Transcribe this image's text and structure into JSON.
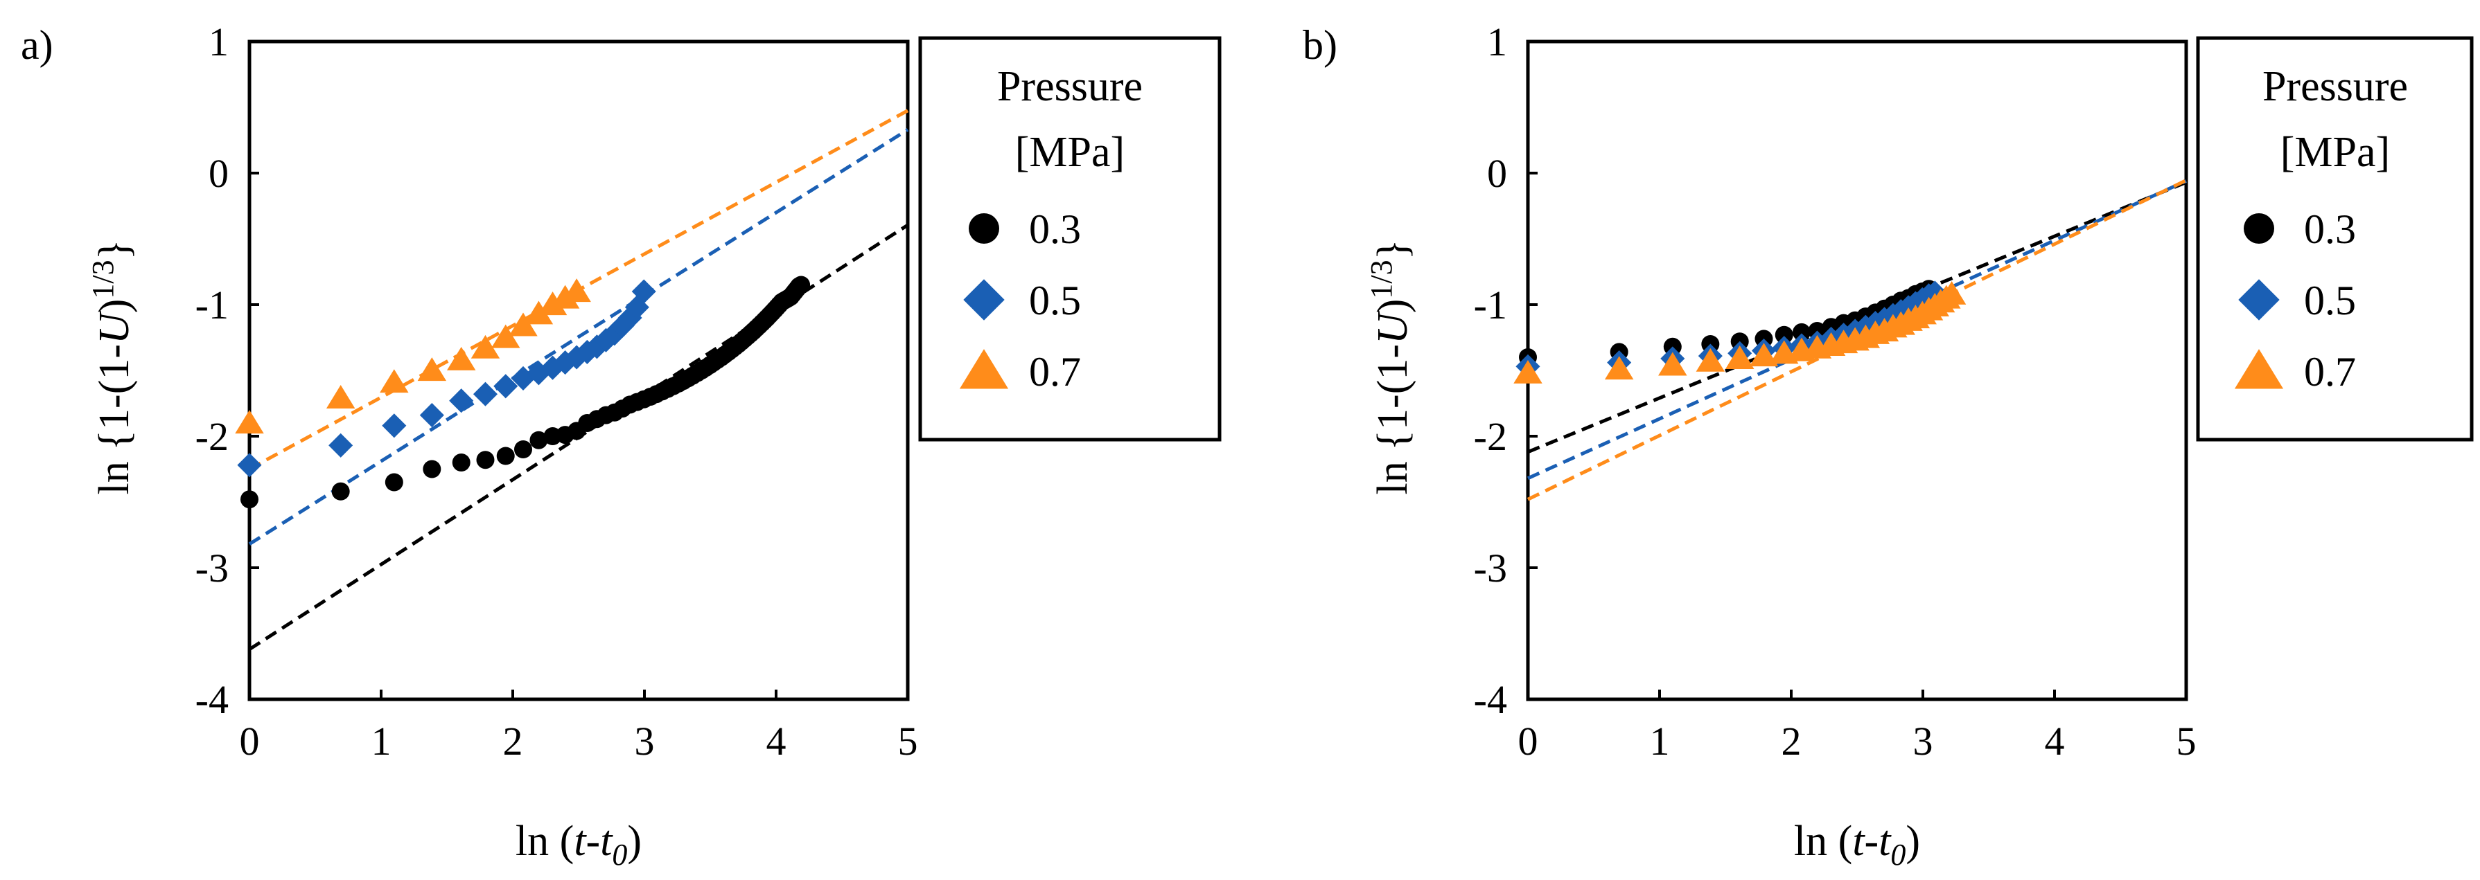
{
  "chart_data": [
    {
      "type": "scatter",
      "panel_label": "a)",
      "xlabel": {
        "prefix": "ln",
        "var": "t",
        "sub": "0"
      },
      "ylabel": {
        "prefix": "ln",
        "left": "{1-(1-",
        "var": "U",
        "right": ")",
        "sup": "1/3",
        "close": "}"
      },
      "xlim": [
        0,
        5
      ],
      "ylim": [
        -4,
        1
      ],
      "x_ticks": [
        "0",
        "1",
        "2",
        "3",
        "4",
        "5"
      ],
      "y_ticks": [
        "-4",
        "-3",
        "-2",
        "-1",
        "0",
        "1"
      ],
      "grid": false,
      "legend": {
        "title_line1": "Pressure",
        "title_line2": "[MPa]",
        "position": "right"
      },
      "series": [
        {
          "name": "0.3",
          "color": "#000000",
          "marker": "circle",
          "fit": {
            "intercept": -3.62,
            "slope": 0.645
          },
          "points": [
            [
              0,
              -2.48
            ],
            [
              0.693,
              -2.42
            ],
            [
              1.099,
              -2.35
            ],
            [
              1.386,
              -2.25
            ],
            [
              1.609,
              -2.2
            ],
            [
              1.792,
              -2.18
            ],
            [
              1.946,
              -2.15
            ],
            [
              2.079,
              -2.1
            ],
            [
              2.197,
              -2.03
            ],
            [
              2.303,
              -2.0
            ],
            [
              2.398,
              -1.99
            ],
            [
              2.485,
              -1.96
            ],
            [
              2.565,
              -1.9
            ],
            [
              2.639,
              -1.87
            ],
            [
              2.708,
              -1.84
            ],
            [
              2.773,
              -1.82
            ],
            [
              2.833,
              -1.79
            ],
            [
              2.89,
              -1.76
            ],
            [
              2.944,
              -1.74
            ],
            [
              2.996,
              -1.72
            ],
            [
              3.045,
              -1.7
            ],
            [
              3.091,
              -1.68
            ],
            [
              3.135,
              -1.66
            ],
            [
              3.178,
              -1.64
            ],
            [
              3.219,
              -1.62
            ],
            [
              3.258,
              -1.6
            ],
            [
              3.296,
              -1.58
            ],
            [
              3.332,
              -1.56
            ],
            [
              3.367,
              -1.54
            ],
            [
              3.401,
              -1.52
            ],
            [
              3.434,
              -1.5
            ],
            [
              3.466,
              -1.48
            ],
            [
              3.497,
              -1.46
            ],
            [
              3.526,
              -1.44
            ],
            [
              3.555,
              -1.42
            ],
            [
              3.584,
              -1.4
            ],
            [
              3.611,
              -1.38
            ],
            [
              3.638,
              -1.36
            ],
            [
              3.664,
              -1.34
            ],
            [
              3.689,
              -1.32
            ],
            [
              3.714,
              -1.3
            ],
            [
              3.738,
              -1.28
            ],
            [
              3.761,
              -1.26
            ],
            [
              3.784,
              -1.24
            ],
            [
              3.807,
              -1.22
            ],
            [
              3.829,
              -1.2
            ],
            [
              3.85,
              -1.18
            ],
            [
              3.871,
              -1.16
            ],
            [
              3.892,
              -1.14
            ],
            [
              3.912,
              -1.12
            ],
            [
              3.932,
              -1.1
            ],
            [
              3.951,
              -1.08
            ],
            [
              3.97,
              -1.06
            ],
            [
              3.989,
              -1.04
            ],
            [
              4.007,
              -1.02
            ],
            [
              4.025,
              -1.0
            ],
            [
              4.043,
              -0.98
            ],
            [
              4.06,
              -0.97
            ],
            [
              4.078,
              -0.96
            ],
            [
              4.094,
              -0.95
            ],
            [
              4.111,
              -0.94
            ],
            [
              4.127,
              -0.92
            ],
            [
              4.143,
              -0.9
            ],
            [
              4.159,
              -0.88
            ],
            [
              4.174,
              -0.86
            ],
            [
              4.19,
              -0.85
            ]
          ]
        },
        {
          "name": "0.5",
          "color": "#1a5fb4",
          "marker": "diamond",
          "fit": {
            "intercept": -2.82,
            "slope": 0.63
          },
          "points": [
            [
              0,
              -2.22
            ],
            [
              0.693,
              -2.07
            ],
            [
              1.099,
              -1.92
            ],
            [
              1.386,
              -1.84
            ],
            [
              1.609,
              -1.73
            ],
            [
              1.792,
              -1.68
            ],
            [
              1.946,
              -1.62
            ],
            [
              2.079,
              -1.56
            ],
            [
              2.197,
              -1.52
            ],
            [
              2.303,
              -1.48
            ],
            [
              2.398,
              -1.44
            ],
            [
              2.485,
              -1.4
            ],
            [
              2.565,
              -1.36
            ],
            [
              2.639,
              -1.32
            ],
            [
              2.708,
              -1.27
            ],
            [
              2.773,
              -1.22
            ],
            [
              2.833,
              -1.16
            ],
            [
              2.89,
              -1.1
            ],
            [
              2.944,
              -1.02
            ],
            [
              2.996,
              -0.9
            ]
          ]
        },
        {
          "name": "0.7",
          "color": "#ff8c1a",
          "marker": "triangle",
          "fit": {
            "intercept": -2.25,
            "slope": 0.545
          },
          "points": [
            [
              0,
              -1.9
            ],
            [
              0.693,
              -1.71
            ],
            [
              1.099,
              -1.59
            ],
            [
              1.386,
              -1.5
            ],
            [
              1.609,
              -1.42
            ],
            [
              1.792,
              -1.33
            ],
            [
              1.946,
              -1.25
            ],
            [
              2.079,
              -1.16
            ],
            [
              2.197,
              -1.07
            ],
            [
              2.303,
              -1.0
            ],
            [
              2.398,
              -0.95
            ],
            [
              2.485,
              -0.9
            ]
          ]
        }
      ]
    },
    {
      "type": "scatter",
      "panel_label": "b)",
      "xlabel": {
        "prefix": "ln",
        "var": "t",
        "sub": "0"
      },
      "ylabel": {
        "prefix": "ln",
        "left": "{1-(1-",
        "var": "U",
        "right": ")",
        "sup": "1/3",
        "close": "}"
      },
      "xlim": [
        0,
        5
      ],
      "ylim": [
        -4,
        1
      ],
      "x_ticks": [
        "0",
        "1",
        "2",
        "3",
        "4",
        "5"
      ],
      "y_ticks": [
        "-4",
        "-3",
        "-2",
        "-1",
        "0",
        "1"
      ],
      "grid": false,
      "legend": {
        "title_line1": "Pressure",
        "title_line2": "[MPa]",
        "position": "right"
      },
      "series": [
        {
          "name": "0.3",
          "color": "#000000",
          "marker": "circle",
          "fit": {
            "intercept": -2.12,
            "slope": 0.41
          },
          "points": [
            [
              0,
              -1.4
            ],
            [
              0.693,
              -1.36
            ],
            [
              1.099,
              -1.32
            ],
            [
              1.386,
              -1.3
            ],
            [
              1.609,
              -1.28
            ],
            [
              1.792,
              -1.26
            ],
            [
              1.946,
              -1.23
            ],
            [
              2.079,
              -1.21
            ],
            [
              2.197,
              -1.2
            ],
            [
              2.303,
              -1.17
            ],
            [
              2.398,
              -1.14
            ],
            [
              2.485,
              -1.12
            ],
            [
              2.565,
              -1.09
            ],
            [
              2.639,
              -1.06
            ],
            [
              2.708,
              -1.03
            ],
            [
              2.773,
              -1.0
            ],
            [
              2.833,
              -0.97
            ],
            [
              2.89,
              -0.95
            ],
            [
              2.944,
              -0.92
            ],
            [
              2.996,
              -0.9
            ],
            [
              3.045,
              -0.88
            ]
          ]
        },
        {
          "name": "0.5",
          "color": "#1a5fb4",
          "marker": "diamond",
          "fit": {
            "intercept": -2.32,
            "slope": 0.452
          },
          "points": [
            [
              0,
              -1.47
            ],
            [
              0.693,
              -1.44
            ],
            [
              1.099,
              -1.41
            ],
            [
              1.386,
              -1.39
            ],
            [
              1.609,
              -1.37
            ],
            [
              1.792,
              -1.35
            ],
            [
              1.946,
              -1.33
            ],
            [
              2.079,
              -1.31
            ],
            [
              2.197,
              -1.29
            ],
            [
              2.303,
              -1.26
            ],
            [
              2.398,
              -1.23
            ],
            [
              2.485,
              -1.2
            ],
            [
              2.565,
              -1.17
            ],
            [
              2.639,
              -1.14
            ],
            [
              2.708,
              -1.11
            ],
            [
              2.773,
              -1.08
            ],
            [
              2.833,
              -1.05
            ],
            [
              2.89,
              -1.02
            ],
            [
              2.944,
              -0.99
            ],
            [
              2.996,
              -0.96
            ],
            [
              3.045,
              -0.93
            ],
            [
              3.091,
              -0.91
            ]
          ]
        },
        {
          "name": "0.7",
          "color": "#ff8c1a",
          "marker": "triangle",
          "fit": {
            "intercept": -2.48,
            "slope": 0.485
          },
          "points": [
            [
              0,
              -1.52
            ],
            [
              0.693,
              -1.49
            ],
            [
              1.099,
              -1.46
            ],
            [
              1.386,
              -1.43
            ],
            [
              1.609,
              -1.41
            ],
            [
              1.792,
              -1.39
            ],
            [
              1.946,
              -1.37
            ],
            [
              2.079,
              -1.35
            ],
            [
              2.197,
              -1.33
            ],
            [
              2.303,
              -1.31
            ],
            [
              2.398,
              -1.29
            ],
            [
              2.485,
              -1.27
            ],
            [
              2.565,
              -1.25
            ],
            [
              2.639,
              -1.22
            ],
            [
              2.708,
              -1.2
            ],
            [
              2.773,
              -1.17
            ],
            [
              2.833,
              -1.15
            ],
            [
              2.89,
              -1.12
            ],
            [
              2.944,
              -1.1
            ],
            [
              2.996,
              -1.07
            ],
            [
              3.045,
              -1.04
            ],
            [
              3.091,
              -1.01
            ],
            [
              3.135,
              -0.98
            ],
            [
              3.178,
              -0.95
            ],
            [
              3.219,
              -0.92
            ]
          ]
        }
      ]
    }
  ]
}
